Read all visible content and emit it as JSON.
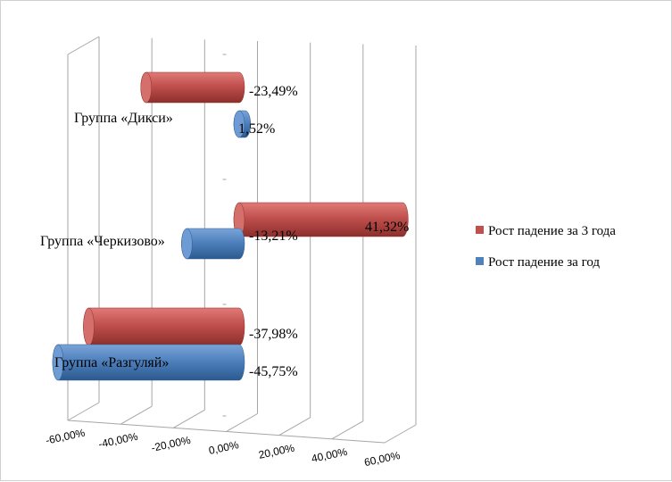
{
  "chart_data": {
    "type": "bar",
    "orientation": "horizontal",
    "style": "3d-cylinder",
    "categories": [
      "Группа «Дикси»",
      "Группа «Черкизово»",
      "Группа «Разгуляй»"
    ],
    "series": [
      {
        "name": "Рост падение за 3 года",
        "color": "#c0504d",
        "values": [
          -23.49,
          41.32,
          -37.98
        ],
        "labels": [
          "-23,49%",
          "41,32%",
          "-37,98%"
        ]
      },
      {
        "name": "Рост падение за год",
        "color": "#4f81bd",
        "values": [
          1.52,
          -13.21,
          -45.75
        ],
        "labels": [
          "1,52%",
          "-13,21%",
          "-45,75%"
        ]
      }
    ],
    "xlim": [
      -60,
      60
    ],
    "ticks": [
      -60,
      -40,
      -20,
      0,
      20,
      40,
      60
    ],
    "tick_labels": [
      "-60,00%",
      "-40,00%",
      "-20,00%",
      "0,00%",
      "20,00%",
      "40,00%",
      "60,00%"
    ],
    "grid": true,
    "legend_position": "right"
  }
}
